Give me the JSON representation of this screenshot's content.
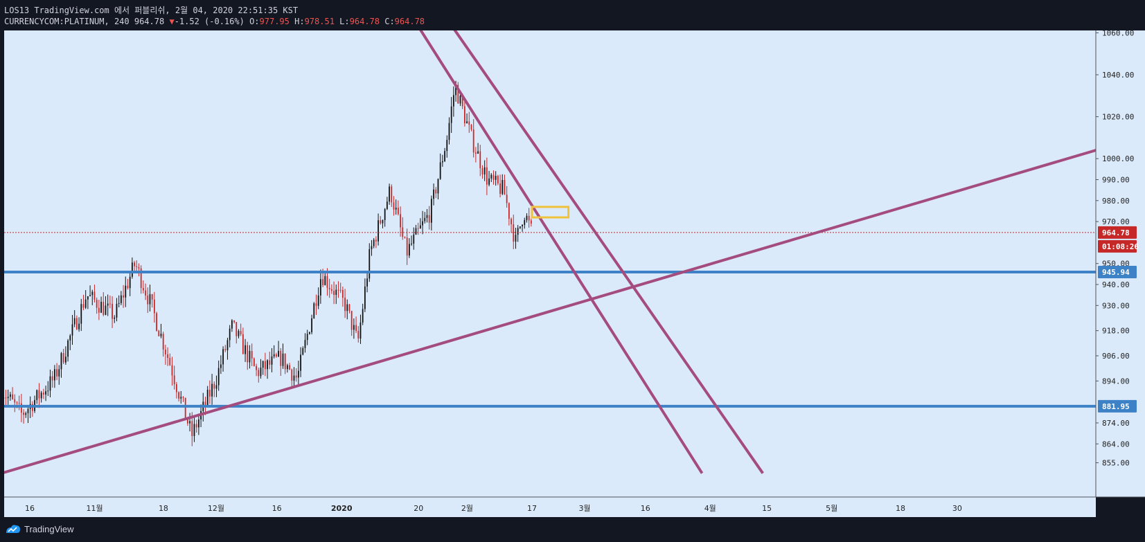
{
  "header": {
    "line1": "LOS13 TradingView.com 에서 퍼블리쉬, 2월 04, 2020 22:51:35 KST",
    "symbol": "CURRENCYCOM:PLATINUM, 240",
    "last": "964.78",
    "arrow": "▼",
    "change": "-1.52 (-0.16%)",
    "o_label": "O:",
    "o_value": "977.95",
    "h_label": "H:",
    "h_value": "978.51",
    "l_label": "L:",
    "l_value": "964.78",
    "c_label": "C:",
    "c_value": "964.78"
  },
  "footer": {
    "brand": "TradingView",
    "icon": "tradingview-logo-icon"
  },
  "colors": {
    "background": "#dbeafa",
    "trendline": "#a44c7e",
    "hline": "#3d82c6",
    "zone": "#f0c23b",
    "price_label": "#c62828",
    "up_candle": "#111111",
    "down_candle": "#c62828"
  },
  "chart_data": {
    "type": "candlestick",
    "symbol": "CURRENCYCOM:PLATINUM",
    "interval": "240",
    "y_ticks": [
      "1060.00",
      "1040.00",
      "1020.00",
      "1000.00",
      "990.00",
      "980.00",
      "970.00",
      "950.00",
      "940.00",
      "930.00",
      "918.00",
      "906.00",
      "894.00",
      "874.00",
      "864.00",
      "855.00"
    ],
    "x_ticks": [
      "16",
      "11월",
      "18",
      "12월",
      "16",
      "2020",
      "20",
      "2월",
      "17",
      "3월",
      "16",
      "4월",
      "15",
      "5월",
      "18",
      "30"
    ],
    "current_price": {
      "label": "964.78",
      "countdown": "01:08:26",
      "value": 964.78
    },
    "horizontal_levels": [
      {
        "label": "945.94",
        "value": 945.94
      },
      {
        "label": "881.95",
        "value": 881.95
      }
    ],
    "approx_path": [
      {
        "t": "2019-10-09",
        "price": 890
      },
      {
        "t": "2019-10-14",
        "price": 878
      },
      {
        "t": "2019-10-22",
        "price": 895
      },
      {
        "t": "2019-10-30",
        "price": 935
      },
      {
        "t": "2019-11-06",
        "price": 925
      },
      {
        "t": "2019-11-11",
        "price": 950
      },
      {
        "t": "2019-11-15",
        "price": 930
      },
      {
        "t": "2019-11-20",
        "price": 900
      },
      {
        "t": "2019-11-25",
        "price": 868
      },
      {
        "t": "2019-12-01",
        "price": 895
      },
      {
        "t": "2019-12-05",
        "price": 920
      },
      {
        "t": "2019-12-11",
        "price": 898
      },
      {
        "t": "2019-12-17",
        "price": 905
      },
      {
        "t": "2019-12-21",
        "price": 895
      },
      {
        "t": "2019-12-27",
        "price": 945
      },
      {
        "t": "2020-01-02",
        "price": 930
      },
      {
        "t": "2020-01-05",
        "price": 912
      },
      {
        "t": "2020-01-08",
        "price": 955
      },
      {
        "t": "2020-01-13",
        "price": 985
      },
      {
        "t": "2020-01-17",
        "price": 955
      },
      {
        "t": "2020-01-23",
        "price": 975
      },
      {
        "t": "2020-01-27",
        "price": 1010
      },
      {
        "t": "2020-01-29",
        "price": 1035
      },
      {
        "t": "2020-02-02",
        "price": 1010
      },
      {
        "t": "2020-02-06",
        "price": 990
      },
      {
        "t": "2020-02-10",
        "price": 985
      },
      {
        "t": "2020-02-13",
        "price": 960
      },
      {
        "t": "2020-02-15",
        "price": 975
      },
      {
        "t": "2020-02-17",
        "price": 964.78
      }
    ],
    "trendlines": [
      {
        "name": "channel-upper",
        "from": {
          "t": "2020-01-24",
          "price": 1075
        },
        "to": {
          "t": "2020-04-14",
          "price": 850
        }
      },
      {
        "name": "channel-lower",
        "from": {
          "t": "2020-01-16",
          "price": 1075
        },
        "to": {
          "t": "2020-03-30",
          "price": 850
        }
      },
      {
        "name": "rising-support",
        "from": {
          "t": "2019-10-09",
          "price": 850
        },
        "to": {
          "t": "2020-07-21",
          "price": 1013
        }
      }
    ],
    "zone": {
      "from_t": "2020-02-17",
      "to_t": "2020-02-26",
      "price_high": 977,
      "price_low": 972
    }
  }
}
